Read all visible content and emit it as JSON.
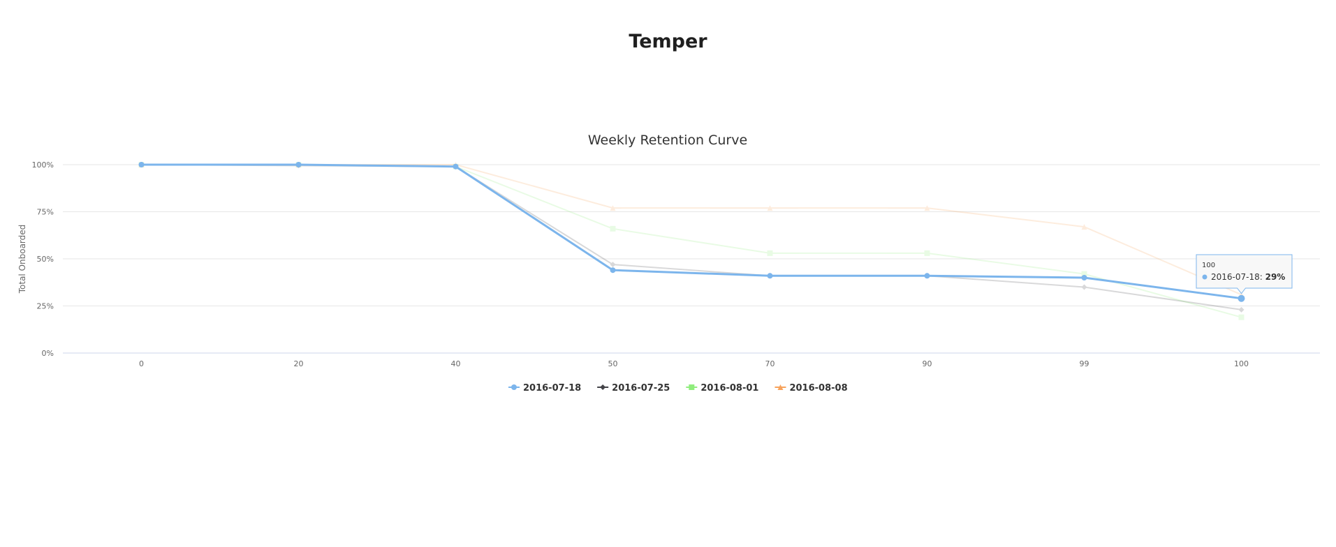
{
  "page": {
    "title": "Temper"
  },
  "chart_data": {
    "type": "line",
    "title": "Weekly Retention Curve",
    "xlabel": "",
    "ylabel": "Total Onboarded",
    "categories": [
      "0",
      "20",
      "40",
      "50",
      "70",
      "90",
      "99",
      "100"
    ],
    "ylim": [
      0,
      100
    ],
    "yticks": [
      "0%",
      "25%",
      "50%",
      "75%",
      "100%"
    ],
    "grid": true,
    "legend_position": "bottom-center",
    "series": [
      {
        "name": "2016-07-18",
        "color": "#7cb5ec",
        "marker": "circle",
        "active": true,
        "values": [
          100,
          100,
          99,
          44,
          41,
          41,
          40,
          29
        ]
      },
      {
        "name": "2016-07-25",
        "color": "#434348",
        "marker": "diamond",
        "active": false,
        "values": [
          100,
          99.5,
          99,
          47,
          41,
          41,
          35,
          23
        ]
      },
      {
        "name": "2016-08-01",
        "color": "#90ed7d",
        "marker": "square",
        "active": false,
        "values": [
          100,
          100,
          99,
          66,
          53,
          53,
          42,
          19
        ]
      },
      {
        "name": "2016-08-08",
        "color": "#f7a35c",
        "marker": "triangle",
        "active": false,
        "values": [
          100,
          100,
          100,
          77,
          77,
          77,
          67,
          31
        ]
      }
    ],
    "tooltip": {
      "header": "100",
      "series_name": "2016-07-18",
      "separator": ": ",
      "value_label": "29%"
    }
  }
}
